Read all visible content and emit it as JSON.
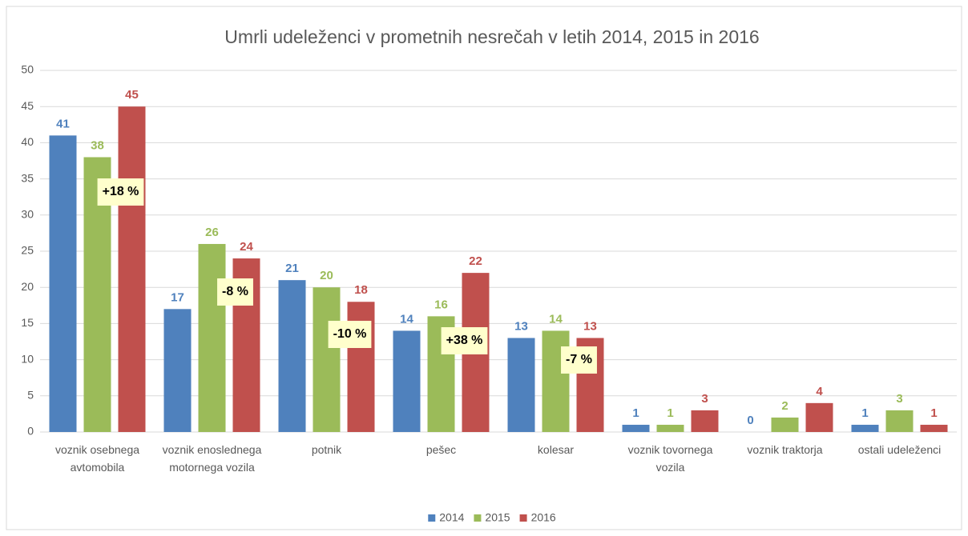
{
  "chart_data": {
    "type": "bar",
    "title": "Umrli udeleženci v prometnih nesrečah v letih 2014, 2015 in 2016",
    "categories": [
      "voznik osebnega avtomobila",
      "voznik enoslednega motornega vozila",
      "potnik",
      "pešec",
      "kolesar",
      "voznik tovornega vozila",
      "voznik traktorja",
      "ostali udeleženci"
    ],
    "series": [
      {
        "name": "2014",
        "color": "#4f81bd",
        "values": [
          41,
          17,
          21,
          14,
          13,
          1,
          0,
          1
        ]
      },
      {
        "name": "2015",
        "color": "#9bbb59",
        "values": [
          38,
          26,
          20,
          16,
          14,
          1,
          2,
          3
        ]
      },
      {
        "name": "2016",
        "color": "#c0504d",
        "values": [
          45,
          24,
          18,
          22,
          13,
          3,
          4,
          1
        ]
      }
    ],
    "ylim": [
      0,
      50
    ],
    "yticks": [
      0,
      5,
      10,
      15,
      20,
      25,
      30,
      35,
      40,
      45,
      50
    ],
    "grid": true,
    "legend": "bottom",
    "annotations": [
      "+18 %",
      "-8 %",
      "-10 %",
      "+38 %",
      "-7 %"
    ]
  }
}
